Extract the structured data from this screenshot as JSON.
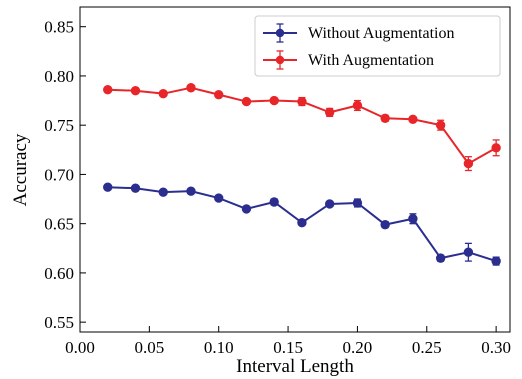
{
  "chart_data": {
    "type": "line",
    "xlabel": "Interval Length",
    "ylabel": "Accuracy",
    "xlim": [
      0.0,
      0.31
    ],
    "ylim": [
      0.54,
      0.87
    ],
    "xticks": [
      0.0,
      0.05,
      0.1,
      0.15,
      0.2,
      0.25,
      0.3
    ],
    "xtick_labels": [
      "0.00",
      "0.05",
      "0.10",
      "0.15",
      "0.20",
      "0.25",
      "0.30"
    ],
    "yticks": [
      0.55,
      0.6,
      0.65,
      0.7,
      0.75,
      0.8,
      0.85
    ],
    "ytick_labels": [
      "0.55",
      "0.60",
      "0.65",
      "0.70",
      "0.75",
      "0.80",
      "0.85"
    ],
    "grid": false,
    "legend_position": "top-right",
    "x": [
      0.02,
      0.04,
      0.06,
      0.08,
      0.1,
      0.12,
      0.14,
      0.16,
      0.18,
      0.2,
      0.22,
      0.24,
      0.26,
      0.28,
      0.3
    ],
    "series": [
      {
        "name": "Without Augmentation",
        "color": "#2b2e8f",
        "values": [
          0.687,
          0.686,
          0.682,
          0.683,
          0.676,
          0.665,
          0.672,
          0.651,
          0.67,
          0.671,
          0.649,
          0.655,
          0.615,
          0.621,
          0.612
        ],
        "errors": [
          0.002,
          0.002,
          0.002,
          0.002,
          0.002,
          0.002,
          0.003,
          0.002,
          0.002,
          0.004,
          0.003,
          0.005,
          0.003,
          0.009,
          0.004
        ]
      },
      {
        "name": "With Augmentation",
        "color": "#e8262a",
        "values": [
          0.786,
          0.785,
          0.782,
          0.788,
          0.781,
          0.774,
          0.775,
          0.774,
          0.763,
          0.77,
          0.757,
          0.756,
          0.75,
          0.711,
          0.727
        ],
        "errors": [
          0.002,
          0.002,
          0.002,
          0.002,
          0.002,
          0.002,
          0.002,
          0.004,
          0.004,
          0.005,
          0.003,
          0.002,
          0.005,
          0.007,
          0.008
        ]
      }
    ]
  }
}
